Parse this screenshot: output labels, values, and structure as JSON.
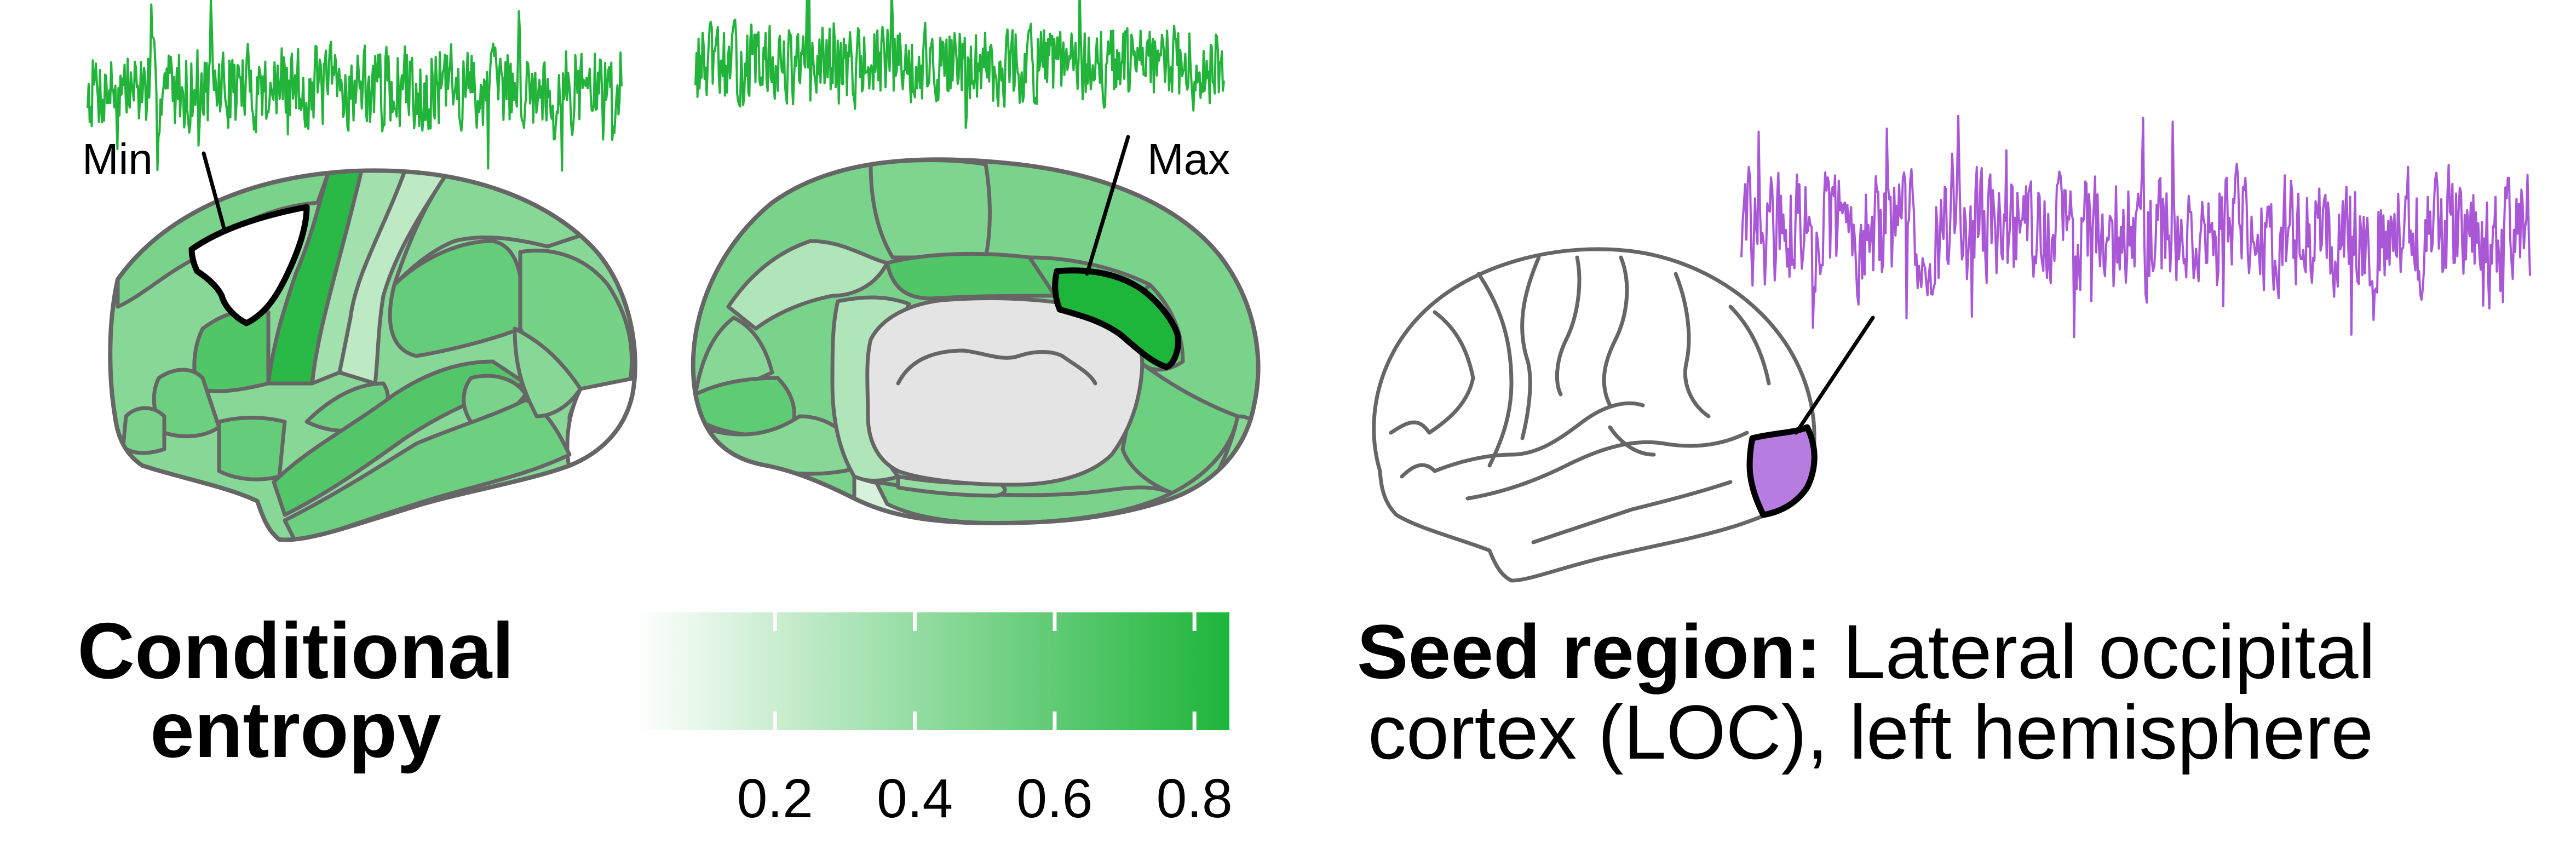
{
  "colors": {
    "trace_green": "#22b33a",
    "trace_purple": "#a957d6",
    "seed_fill": "#b77ce0",
    "scale_low": "#ffffff",
    "scale_high": "#1db53a",
    "midwall": "#e4e4e4"
  },
  "callouts": {
    "min": "Min",
    "max": "Max"
  },
  "legend": {
    "title_line1": "Conditional",
    "title_line2": "entropy",
    "min_value": 0.0,
    "max_value": 0.85,
    "ticks": [
      "0.2",
      "0.4",
      "0.6",
      "0.8"
    ],
    "tick_values": [
      0.2,
      0.4,
      0.6,
      0.8
    ]
  },
  "seed": {
    "bold": "Seed region:",
    "line1": " Lateral occipital",
    "line2": "cortex (LOC), left hemisphere"
  },
  "regions": {
    "lateral": [
      {
        "id": "paracentral-strip",
        "value": 0.35
      },
      {
        "id": "superior-frontal",
        "value": 0.5
      },
      {
        "id": "middle-frontal",
        "value": 0.45
      },
      {
        "id": "precentral",
        "value": 0.8
      },
      {
        "id": "caudal-middle-frontal",
        "value": 0.66
      },
      {
        "id": "postcentral",
        "value": 0.25
      },
      {
        "id": "superior-parietal",
        "value": 0.45
      },
      {
        "id": "supramarginal",
        "value": 0.58
      },
      {
        "id": "inferior-parietal",
        "value": 0.52
      },
      {
        "id": "lateral-occipital",
        "value": 0.5
      },
      {
        "id": "pars-opercularis",
        "value": 0.55
      },
      {
        "id": "pars-triangularis",
        "value": 0.5
      },
      {
        "id": "pars-orbitalis",
        "value": 0.55
      },
      {
        "id": "lateral-orbitofrontal",
        "value": 0.58
      },
      {
        "id": "insula",
        "value": 0.55
      },
      {
        "id": "superior-temporal",
        "value": 0.65
      },
      {
        "id": "bank-sts",
        "value": 0.5
      },
      {
        "id": "middle-temporal",
        "value": 0.55
      },
      {
        "id": "inferior-temporal",
        "value": 0.5
      },
      {
        "id": "transverse-temporal",
        "value": 0.45
      },
      {
        "id": "occipital-pole",
        "value": 0.0
      }
    ],
    "medial": [
      {
        "id": "superior-frontal-medial",
        "value": 0.5
      },
      {
        "id": "paracentral",
        "value": 0.48
      },
      {
        "id": "precuneus",
        "value": 0.3
      },
      {
        "id": "cuneus",
        "value": 0.45
      },
      {
        "id": "pericalcarine",
        "value": 0.6
      },
      {
        "id": "lingual",
        "value": 0.45
      },
      {
        "id": "isthmus-cingulate",
        "value": 0.3
      },
      {
        "id": "posterior-cingulate",
        "value": 0.66
      },
      {
        "id": "caudal-anterior-cingulate",
        "value": 0.6
      },
      {
        "id": "rostral-anterior-cingulate",
        "value": 0.6
      },
      {
        "id": "medial-orbitofrontal",
        "value": 0.55
      },
      {
        "id": "parahippocampal",
        "value": 0.15
      },
      {
        "id": "fusiform",
        "value": 0.5
      },
      {
        "id": "frontal-pole",
        "value": 0.45
      },
      {
        "id": "entorhinal",
        "value": 0.4
      }
    ]
  }
}
